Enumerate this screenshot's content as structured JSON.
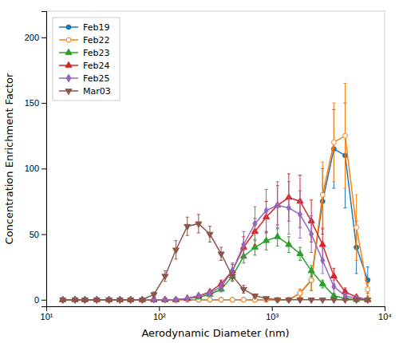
{
  "chart_data": {
    "type": "line",
    "xlabel": "Aerodynamic Diameter (nm)",
    "ylabel": "Concentration Enrichment Factor",
    "log": "x",
    "xlim": [
      10,
      10000
    ],
    "ylim": [
      -5,
      220
    ],
    "xticks": [
      {
        "value": 10,
        "label": "10¹"
      },
      {
        "value": 100,
        "label": "10²"
      },
      {
        "value": 1000,
        "label": "10³"
      },
      {
        "value": 10000,
        "label": "10⁴"
      }
    ],
    "yticks": [
      0,
      50,
      100,
      150,
      200
    ],
    "grid": false,
    "legend": "upper left",
    "x": [
      14,
      18,
      22,
      28,
      36,
      45,
      56,
      71,
      90,
      113,
      141,
      178,
      224,
      282,
      355,
      447,
      562,
      708,
      891,
      1122,
      1413,
      1778,
      2239,
      2818,
      3548,
      4467,
      5623,
      7079
    ],
    "series": [
      {
        "name": "Feb19",
        "marker": "circle",
        "values": [
          0,
          0,
          0,
          0,
          0,
          0,
          0,
          0,
          0,
          0,
          0,
          0,
          0,
          0,
          0,
          0,
          0,
          0,
          0,
          0,
          0,
          5,
          15,
          75,
          115,
          110,
          40,
          15
        ],
        "errors": [
          0,
          0,
          0,
          0,
          0,
          0,
          0,
          0,
          0,
          0,
          0,
          0,
          0,
          0,
          0,
          0,
          0,
          0,
          0,
          0,
          0,
          3,
          8,
          25,
          30,
          40,
          20,
          10
        ]
      },
      {
        "name": "Feb22",
        "marker": "open-circle",
        "values": [
          0,
          0,
          0,
          0,
          0,
          0,
          0,
          0,
          0,
          0,
          0,
          0,
          0,
          0,
          0,
          0,
          0,
          0,
          0,
          0,
          0,
          5,
          15,
          80,
          120,
          125,
          55,
          8
        ],
        "errors": [
          0,
          0,
          0,
          0,
          0,
          0,
          0,
          0,
          0,
          0,
          0,
          0,
          0,
          0,
          0,
          0,
          0,
          0,
          0,
          0,
          0,
          3,
          8,
          25,
          30,
          40,
          25,
          5
        ]
      },
      {
        "name": "Feb23",
        "marker": "triangle-up",
        "values": [
          0,
          0,
          0,
          0,
          0,
          0,
          0,
          0,
          0,
          0,
          0,
          1,
          2,
          4,
          8,
          18,
          33,
          40,
          45,
          48,
          42,
          35,
          22,
          12,
          3,
          1,
          0,
          0
        ],
        "errors": [
          0,
          0,
          0,
          0,
          0,
          0,
          0,
          0,
          0,
          0,
          0,
          0,
          1,
          1,
          2,
          3,
          5,
          6,
          7,
          7,
          6,
          5,
          4,
          3,
          1,
          1,
          0,
          0
        ]
      },
      {
        "name": "Feb24",
        "marker": "triangle-up",
        "values": [
          0,
          0,
          0,
          0,
          0,
          0,
          0,
          0,
          0,
          0,
          0,
          1,
          3,
          6,
          12,
          22,
          40,
          52,
          63,
          72,
          78,
          75,
          60,
          42,
          18,
          6,
          2,
          0
        ],
        "errors": [
          0,
          0,
          0,
          0,
          0,
          0,
          0,
          0,
          0,
          0,
          0,
          0,
          1,
          1,
          3,
          5,
          8,
          10,
          12,
          15,
          18,
          20,
          16,
          12,
          6,
          3,
          1,
          0
        ]
      },
      {
        "name": "Feb25",
        "marker": "diamond",
        "values": [
          0,
          0,
          0,
          0,
          0,
          0,
          0,
          0,
          0,
          0,
          0,
          1,
          3,
          5,
          10,
          22,
          42,
          58,
          68,
          72,
          70,
          65,
          50,
          30,
          10,
          3,
          1,
          0
        ],
        "errors": [
          0,
          0,
          0,
          0,
          0,
          0,
          0,
          0,
          0,
          0,
          0,
          0,
          1,
          2,
          3,
          6,
          10,
          13,
          16,
          18,
          20,
          18,
          14,
          10,
          5,
          2,
          1,
          0
        ]
      },
      {
        "name": "Mar03",
        "marker": "triangle-down",
        "values": [
          0,
          0,
          0,
          0,
          0,
          0,
          0,
          0,
          4,
          18,
          38,
          56,
          58,
          50,
          35,
          18,
          8,
          3,
          1,
          0,
          0,
          0,
          0,
          0,
          0,
          0,
          0,
          0
        ],
        "errors": [
          0,
          0,
          0,
          0,
          0,
          0,
          0,
          0,
          2,
          4,
          7,
          7,
          7,
          6,
          5,
          4,
          3,
          1,
          1,
          0,
          0,
          0,
          0,
          0,
          0,
          0,
          0,
          0
        ]
      }
    ]
  }
}
